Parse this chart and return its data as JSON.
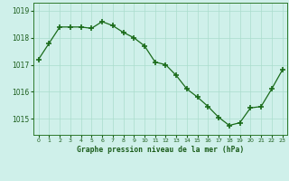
{
  "hours": [
    0,
    1,
    2,
    3,
    4,
    5,
    6,
    7,
    8,
    9,
    10,
    11,
    12,
    13,
    14,
    15,
    16,
    17,
    18,
    19,
    20,
    21,
    22,
    23
  ],
  "pressure": [
    1017.2,
    1017.8,
    1018.4,
    1018.4,
    1018.4,
    1018.35,
    1018.6,
    1018.45,
    1018.2,
    1018.0,
    1017.7,
    1017.1,
    1017.0,
    1016.6,
    1016.1,
    1015.8,
    1015.45,
    1015.05,
    1014.75,
    1014.85,
    1015.4,
    1015.45,
    1016.1,
    1016.8
  ],
  "line_color": "#1a6b1a",
  "marker_color": "#1a6b1a",
  "bg_color": "#cff0ea",
  "grid_color": "#aaddcc",
  "title": "Graphe pression niveau de la mer (hPa)",
  "title_color": "#1a5c1a",
  "ylim_min": 1014.4,
  "ylim_max": 1019.3,
  "yticks": [
    1015,
    1016,
    1017,
    1018,
    1019
  ],
  "tick_color": "#1a5c1a",
  "border_color": "#2d7a2d"
}
